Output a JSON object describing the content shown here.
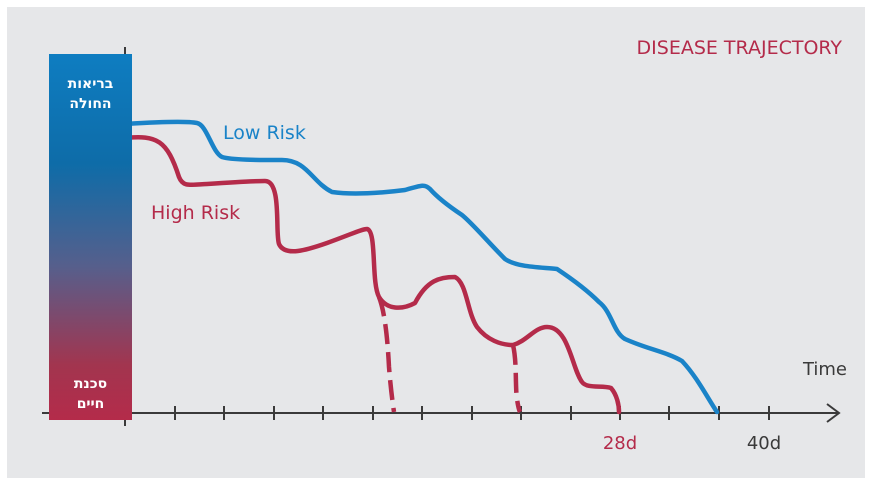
{
  "title": "DISEASE TRAJECTORY",
  "health_bar": {
    "top_label_line1": "בריאות",
    "top_label_line2": "החולה",
    "bottom_label_line1": "סכנת",
    "bottom_label_line2": "חיים",
    "gradient_colors": [
      "#0e7dc1",
      "#0e6ca8",
      "#565f8c",
      "#a2354f",
      "#b42b4a"
    ]
  },
  "axis": {
    "x_label": "Time",
    "tick_labels": [
      {
        "text": "28d",
        "color": "#b42b4a"
      },
      {
        "text": "40d",
        "color": "#3a3a3a"
      }
    ]
  },
  "series": [
    {
      "name": "Low Risk",
      "color": "#1a83c8"
    },
    {
      "name": "High Risk",
      "color": "#b42b4a"
    }
  ],
  "colors": {
    "panel_background": "#e6e7e9",
    "title": "#b42b4a",
    "axis": "#3a3a3a"
  }
}
